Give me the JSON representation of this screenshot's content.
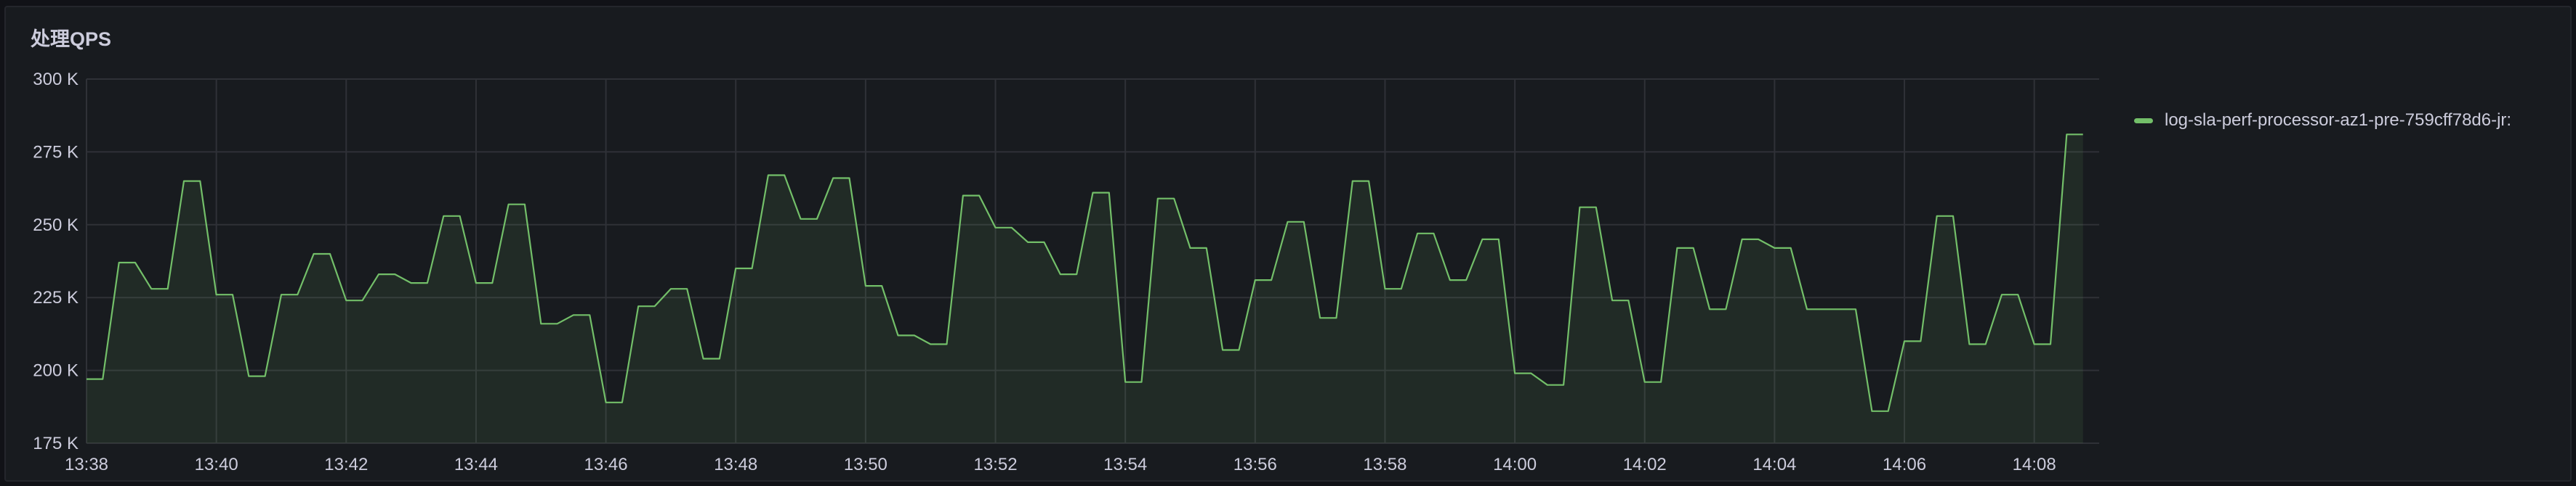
{
  "panel": {
    "title": "处理QPS"
  },
  "colors": {
    "series": "#73bf69",
    "series_fill": "rgba(115,191,105,0.10)",
    "grid": "#2f3137",
    "text": "#ccccdc"
  },
  "chart_data": {
    "type": "area",
    "title": "处理QPS",
    "legend": {
      "placement": "right",
      "entries": [
        "log-sla-perf-processor-az1-pre-759cff78d6-jr:"
      ]
    },
    "ylim": [
      175000,
      300000
    ],
    "y_ticks": [
      175000,
      200000,
      225000,
      250000,
      275000,
      300000
    ],
    "y_tick_labels": [
      "175 K",
      "200 K",
      "225 K",
      "250 K",
      "275 K",
      "300 K"
    ],
    "x_range_minutes": [
      818,
      849
    ],
    "x_tick_labels": [
      "13:38",
      "13:40",
      "13:42",
      "13:44",
      "13:46",
      "13:48",
      "13:50",
      "13:52",
      "13:54",
      "13:56",
      "13:58",
      "14:00",
      "14:02",
      "14:04",
      "14:06",
      "14:08"
    ],
    "x_ticks": [
      "13:38",
      "13:40",
      "13:42",
      "13:44",
      "13:46",
      "13:48",
      "13:50",
      "13:52",
      "13:54",
      "13:56",
      "13:58",
      "14:00",
      "14:02",
      "14:04",
      "14:06",
      "14:08"
    ],
    "grid": true,
    "series": [
      {
        "name": "log-sla-perf-processor-az1-pre-759cff78d6-jr:",
        "x": [
          "13:38:00",
          "13:38:15",
          "13:38:30",
          "13:38:45",
          "13:39:00",
          "13:39:15",
          "13:39:30",
          "13:39:45",
          "13:40:00",
          "13:40:15",
          "13:40:30",
          "13:40:45",
          "13:41:00",
          "13:41:15",
          "13:41:30",
          "13:41:45",
          "13:42:00",
          "13:42:15",
          "13:42:30",
          "13:42:45",
          "13:43:00",
          "13:43:15",
          "13:43:30",
          "13:43:45",
          "13:44:00",
          "13:44:15",
          "13:44:30",
          "13:44:45",
          "13:45:00",
          "13:45:15",
          "13:45:30",
          "13:45:45",
          "13:46:00",
          "13:46:15",
          "13:46:30",
          "13:46:45",
          "13:47:00",
          "13:47:15",
          "13:47:30",
          "13:47:45",
          "13:48:00",
          "13:48:15",
          "13:48:30",
          "13:48:45",
          "13:49:00",
          "13:49:15",
          "13:49:30",
          "13:49:45",
          "13:50:00",
          "13:50:15",
          "13:50:30",
          "13:50:45",
          "13:51:00",
          "13:51:15",
          "13:51:30",
          "13:51:45",
          "13:52:00",
          "13:52:15",
          "13:52:30",
          "13:52:45",
          "13:53:00",
          "13:53:15",
          "13:53:30",
          "13:53:45",
          "13:54:00",
          "13:54:15",
          "13:54:30",
          "13:54:45",
          "13:55:00",
          "13:55:15",
          "13:55:30",
          "13:55:45",
          "13:56:00",
          "13:56:15",
          "13:56:30",
          "13:56:45",
          "13:57:00",
          "13:57:15",
          "13:57:30",
          "13:57:45",
          "13:58:00",
          "13:58:15",
          "13:58:30",
          "13:58:45",
          "13:59:00",
          "13:59:15",
          "13:59:30",
          "13:59:45",
          "14:00:00",
          "14:00:15",
          "14:00:30",
          "14:00:45",
          "14:01:00",
          "14:01:15",
          "14:01:30",
          "14:01:45",
          "14:02:00",
          "14:02:15",
          "14:02:30",
          "14:02:45",
          "14:03:00",
          "14:03:15",
          "14:03:30",
          "14:03:45",
          "14:04:00",
          "14:04:15",
          "14:04:30",
          "14:04:45",
          "14:05:00",
          "14:05:15",
          "14:05:30",
          "14:05:45",
          "14:06:00",
          "14:06:15",
          "14:06:30",
          "14:06:45",
          "14:07:00",
          "14:07:15",
          "14:07:30",
          "14:07:45",
          "14:08:00",
          "14:08:15",
          "14:08:30",
          "14:08:45"
        ],
        "values": [
          197000,
          197000,
          237000,
          237000,
          228000,
          228000,
          265000,
          265000,
          226000,
          226000,
          198000,
          198000,
          226000,
          226000,
          240000,
          240000,
          224000,
          224000,
          233000,
          233000,
          230000,
          230000,
          253000,
          253000,
          230000,
          230000,
          257000,
          257000,
          216000,
          216000,
          219000,
          219000,
          189000,
          189000,
          222000,
          222000,
          228000,
          228000,
          204000,
          204000,
          235000,
          235000,
          267000,
          267000,
          252000,
          252000,
          266000,
          266000,
          229000,
          229000,
          212000,
          212000,
          209000,
          209000,
          260000,
          260000,
          249000,
          249000,
          244000,
          244000,
          233000,
          233000,
          261000,
          261000,
          196000,
          196000,
          259000,
          259000,
          242000,
          242000,
          207000,
          207000,
          231000,
          231000,
          251000,
          251000,
          218000,
          218000,
          265000,
          265000,
          228000,
          228000,
          247000,
          247000,
          231000,
          231000,
          245000,
          245000,
          199000,
          199000,
          195000,
          195000,
          256000,
          256000,
          224000,
          224000,
          196000,
          196000,
          242000,
          242000,
          221000,
          221000,
          245000,
          245000,
          242000,
          242000,
          221000,
          221000,
          221000,
          221000,
          186000,
          186000,
          210000,
          210000,
          253000,
          253000,
          209000,
          209000,
          226000,
          226000,
          209000,
          209000,
          281000,
          281000
        ]
      }
    ]
  }
}
